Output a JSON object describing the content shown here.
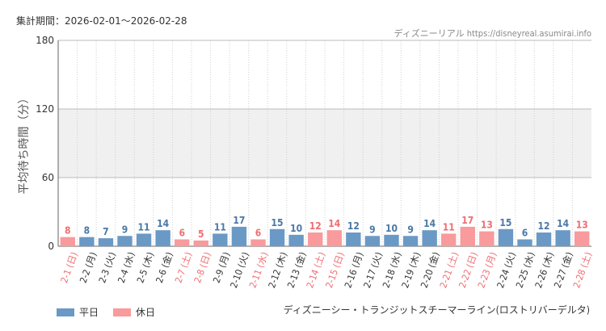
{
  "header": {
    "period": "集計期間：2026-02-01～2026-02-28",
    "credit": "ディズニーリアル https://disneyreal.asumirai.info"
  },
  "footer": {
    "attraction": "ディズニーシー・トランジットスチーマーライン(ロストリバーデルタ)"
  },
  "colors": {
    "weekday": "#6b99c6",
    "holiday": "#f99a9c",
    "weekday_text": "#4a78a8",
    "holiday_text": "#ee6e72",
    "band": "#f0f0f0"
  },
  "chart_data": {
    "type": "bar",
    "title": "",
    "ylabel": "平均待ち時間（分）",
    "xlabel": "",
    "ylim": [
      0,
      180
    ],
    "yticks": [
      0,
      60,
      120,
      180
    ],
    "legend": [
      "平日",
      "休日"
    ],
    "categories": [
      "2-1 (日)",
      "2-2 (月)",
      "2-3 (火)",
      "2-4 (水)",
      "2-5 (木)",
      "2-6 (金)",
      "2-7 (土)",
      "2-8 (日)",
      "2-9 (月)",
      "2-10 (火)",
      "2-11 (水)",
      "2-12 (木)",
      "2-13 (金)",
      "2-14 (土)",
      "2-15 (日)",
      "2-16 (月)",
      "2-17 (火)",
      "2-18 (水)",
      "2-19 (木)",
      "2-20 (金)",
      "2-21 (土)",
      "2-22 (日)",
      "2-23 (月)",
      "2-24 (火)",
      "2-25 (水)",
      "2-26 (木)",
      "2-27 (金)",
      "2-28 (土)"
    ],
    "values": [
      8,
      8,
      7,
      9,
      11,
      14,
      6,
      5,
      11,
      17,
      6,
      15,
      10,
      12,
      14,
      12,
      9,
      10,
      9,
      14,
      11,
      17,
      13,
      15,
      6,
      12,
      14,
      13
    ],
    "day_type": [
      "休日",
      "平日",
      "平日",
      "平日",
      "平日",
      "平日",
      "休日",
      "休日",
      "平日",
      "平日",
      "休日",
      "平日",
      "平日",
      "休日",
      "休日",
      "平日",
      "平日",
      "平日",
      "平日",
      "平日",
      "休日",
      "休日",
      "休日",
      "平日",
      "平日",
      "平日",
      "平日",
      "休日"
    ]
  }
}
